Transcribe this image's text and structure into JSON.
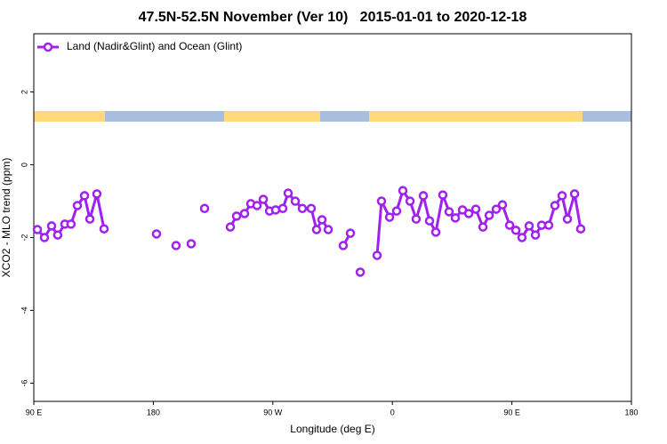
{
  "chart_data": {
    "type": "line",
    "title": "47.5N-52.5N November (Ver 10)   2015-01-01 to 2020-12-18",
    "x_label": "Longitude (deg E)",
    "y_label": "XCO2 - MLO trend (ppm)",
    "xlim": [
      90,
      540
    ],
    "xticks": [
      {
        "value": 90,
        "label": "90 E"
      },
      180,
      {
        "value": 270,
        "label": "90 W"
      },
      {
        "value": 360,
        "label": "0"
      },
      {
        "value": 450,
        "label": "90 E"
      },
      {
        "value": 540,
        "label": "180"
      }
    ],
    "ylim": [
      -6.5,
      3.6
    ],
    "yticks": [
      2,
      0,
      -2,
      -4,
      -6
    ],
    "legend": "top-left",
    "x": [
      92.7,
      98,
      103.4,
      108,
      113.4,
      118,
      122.8,
      128.2,
      132.2,
      137.5,
      142.9,
      160,
      182.4,
      190,
      197.1,
      203,
      208.5,
      214,
      218.6,
      228,
      238,
      242.7,
      248.7,
      253.4,
      258.1,
      262.8,
      267.5,
      272.1,
      277.5,
      281.5,
      286.9,
      292.2,
      298.9,
      302.9,
      307,
      311.7,
      317,
      323,
      328.4,
      332,
      335.8,
      342,
      348.5,
      351.8,
      357.9,
      363.2,
      367.9,
      373.3,
      377.9,
      383.3,
      388,
      392.7,
      398,
      402.7,
      407.4,
      412.8,
      417.5,
      422.8,
      428.2,
      432.9,
      438.2,
      442.9,
      448.3,
      453,
      457.6,
      463,
      467.7,
      472.4,
      477.7,
      482.4,
      487.8,
      491.8,
      497.2,
      501.8
    ],
    "series": [
      {
        "name": "Land (Nadir&Glint) and Ocean (Glint)",
        "color": "#a020f0",
        "values": [
          -1.78,
          -2.0,
          -1.68,
          -1.93,
          -1.63,
          -1.63,
          -1.12,
          -0.85,
          -1.49,
          -0.8,
          -1.76,
          null,
          -1.9,
          null,
          -2.22,
          null,
          -2.17,
          null,
          -1.2,
          null,
          -1.71,
          -1.41,
          -1.34,
          -1.07,
          -1.12,
          -0.95,
          -1.27,
          -1.24,
          -1.2,
          -0.78,
          -1.0,
          -1.2,
          -1.2,
          -1.78,
          -1.51,
          -1.78,
          null,
          -2.22,
          -1.88,
          null,
          -2.95,
          null,
          -2.49,
          -1.0,
          -1.44,
          -1.27,
          -0.71,
          -1.0,
          -1.49,
          -0.85,
          -1.54,
          -1.85,
          -0.83,
          -1.29,
          -1.46,
          -1.24,
          -1.34,
          -1.22,
          -1.71,
          -1.39,
          -1.22,
          -1.1,
          -1.66,
          -1.8,
          -2.0,
          -1.68,
          -1.93,
          -1.66,
          -1.66,
          -1.12,
          -0.85,
          -1.49,
          -0.8,
          -1.76
        ]
      }
    ]
  }
}
